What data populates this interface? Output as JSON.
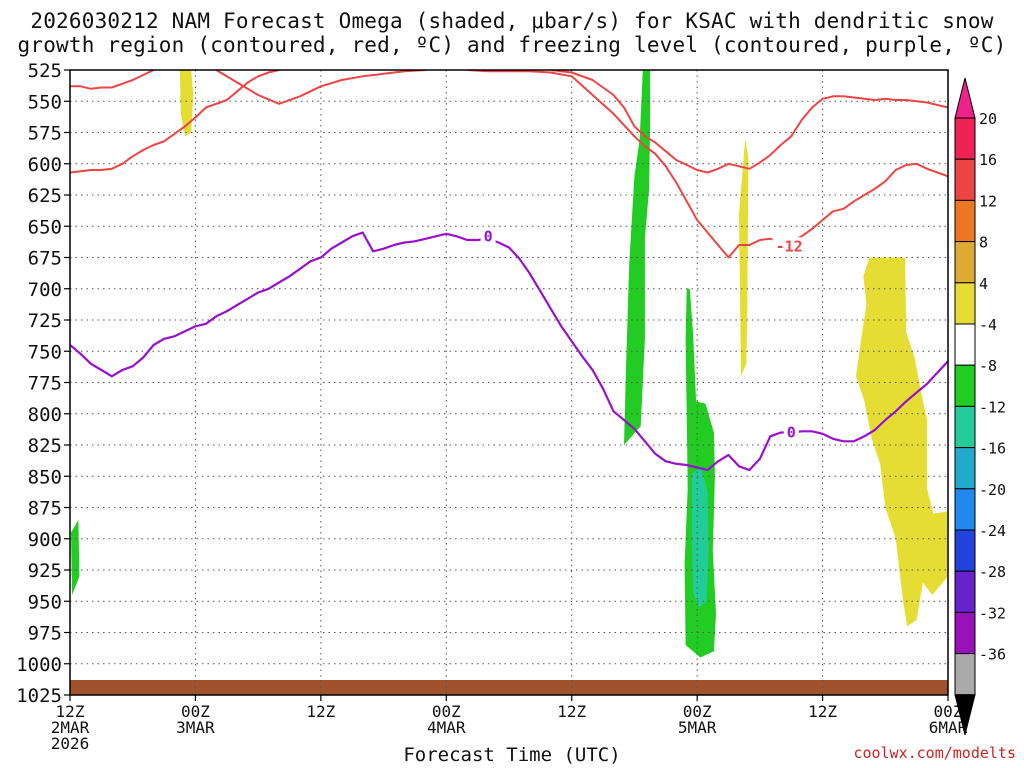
{
  "chart_data": {
    "type": "time-height",
    "title_line1": "2026030212 NAM Forecast Omega (shaded, μbar/s) for KSAC with dendritic snow",
    "title_line2": "growth region (contoured, red, ºC) and freezing level (contoured, purple, ºC)",
    "xlabel": "Forecast Time (UTC)",
    "credit": "coolwx.com/modelts",
    "x_range_hours": [
      0,
      84
    ],
    "y_range_hpa": [
      525,
      1025
    ],
    "x_ticks": [
      {
        "hour": 0,
        "line1": "12Z",
        "line2": "2MAR",
        "line3": "2026"
      },
      {
        "hour": 12,
        "line1": "00Z",
        "line2": "3MAR",
        "line3": ""
      },
      {
        "hour": 24,
        "line1": "12Z",
        "line2": "",
        "line3": ""
      },
      {
        "hour": 36,
        "line1": "00Z",
        "line2": "4MAR",
        "line3": ""
      },
      {
        "hour": 48,
        "line1": "12Z",
        "line2": "",
        "line3": ""
      },
      {
        "hour": 60,
        "line1": "00Z",
        "line2": "5MAR",
        "line3": ""
      },
      {
        "hour": 72,
        "line1": "12Z",
        "line2": "",
        "line3": ""
      },
      {
        "hour": 84,
        "line1": "00Z",
        "line2": "6MAR",
        "line3": ""
      }
    ],
    "y_ticks": [
      525,
      550,
      575,
      600,
      625,
      650,
      675,
      700,
      725,
      750,
      775,
      800,
      825,
      850,
      875,
      900,
      925,
      950,
      975,
      1000,
      1025
    ],
    "colorbar": {
      "levels": [
        20,
        16,
        12,
        8,
        4,
        -4,
        -8,
        -12,
        -16,
        -20,
        -24,
        -28,
        -32,
        -36
      ],
      "colors": [
        "#ee2255",
        "#ee4444",
        "#ee7722",
        "#ddaa33",
        "#e5dd33",
        "#ffffff",
        "#22cc22",
        "#22cc99",
        "#22aacc",
        "#2288ee",
        "#2244dd",
        "#6622cc",
        "#9911bb",
        "#aaaaaa",
        "#000000"
      ],
      "top_arrow_color": "#ee2288",
      "bottom_arrow_color": "#000000"
    },
    "colors": {
      "dendritic_contour": "#ee4444",
      "freezing_contour": "#9911cc",
      "ground": "#a0522d",
      "omega_pos_4": "#e5dd33",
      "omega_neg_4": "#22cc22",
      "omega_neg_8": "#22cc99"
    },
    "contour_labels": [
      {
        "text": "0",
        "hour": 40.0,
        "hpa": 658,
        "color_key": "freezing_contour"
      },
      {
        "text": "-12",
        "hour": 68.8,
        "hpa": 666,
        "color_key": "dendritic_contour"
      },
      {
        "text": "0",
        "hour": 69.0,
        "hpa": 815,
        "color_key": "freezing_contour"
      }
    ],
    "freezing_level_0C": [
      [
        0,
        745
      ],
      [
        1,
        752
      ],
      [
        2,
        760
      ],
      [
        3,
        765
      ],
      [
        4,
        770
      ],
      [
        5,
        765
      ],
      [
        6,
        762
      ],
      [
        7,
        755
      ],
      [
        8,
        745
      ],
      [
        9,
        740
      ],
      [
        10,
        738
      ],
      [
        11,
        734
      ],
      [
        12,
        730
      ],
      [
        13,
        728
      ],
      [
        14,
        722
      ],
      [
        15,
        718
      ],
      [
        16,
        713
      ],
      [
        17,
        708
      ],
      [
        18,
        703
      ],
      [
        19,
        700
      ],
      [
        20,
        695
      ],
      [
        21,
        690
      ],
      [
        22,
        684
      ],
      [
        23,
        678
      ],
      [
        24,
        675
      ],
      [
        25,
        668
      ],
      [
        26,
        663
      ],
      [
        27,
        658
      ],
      [
        28,
        655
      ],
      [
        29,
        670
      ],
      [
        30,
        668
      ],
      [
        31,
        665
      ],
      [
        32,
        663
      ],
      [
        33,
        662
      ],
      [
        34,
        660
      ],
      [
        35,
        658
      ],
      [
        36,
        656
      ],
      [
        37,
        658
      ],
      [
        38,
        661
      ],
      [
        39,
        661
      ],
      [
        40,
        660
      ],
      [
        41,
        663
      ],
      [
        42,
        667
      ],
      [
        43,
        676
      ],
      [
        44,
        688
      ],
      [
        45,
        702
      ],
      [
        46,
        716
      ],
      [
        47,
        730
      ],
      [
        48,
        742
      ],
      [
        49,
        754
      ],
      [
        50,
        765
      ],
      [
        51,
        780
      ],
      [
        52,
        798
      ],
      [
        53,
        805
      ],
      [
        54,
        812
      ],
      [
        55,
        822
      ],
      [
        56,
        832
      ],
      [
        57,
        838
      ],
      [
        58,
        840
      ],
      [
        59,
        841
      ],
      [
        60,
        843
      ],
      [
        61,
        845
      ],
      [
        62,
        838
      ],
      [
        63,
        833
      ],
      [
        64,
        842
      ],
      [
        65,
        845
      ],
      [
        66,
        836
      ],
      [
        67,
        818
      ],
      [
        68,
        815
      ],
      [
        69,
        815
      ],
      [
        70,
        814
      ],
      [
        71,
        814
      ],
      [
        72,
        816
      ],
      [
        73,
        820
      ],
      [
        74,
        822
      ],
      [
        75,
        822
      ],
      [
        76,
        818
      ],
      [
        77,
        813
      ],
      [
        78,
        805
      ],
      [
        79,
        798
      ],
      [
        80,
        790
      ],
      [
        81,
        783
      ],
      [
        82,
        776
      ],
      [
        83,
        767
      ],
      [
        84,
        758
      ]
    ],
    "dendritic_upper": [
      [
        0,
        538
      ],
      [
        1,
        538
      ],
      [
        2,
        540
      ],
      [
        3,
        539
      ],
      [
        4,
        539
      ],
      [
        5,
        536
      ],
      [
        6,
        533
      ],
      [
        7,
        529
      ],
      [
        8,
        525
      ]
    ],
    "dendritic_upper_b": [
      [
        14,
        525
      ],
      [
        16,
        535
      ],
      [
        18,
        545
      ],
      [
        20,
        552
      ],
      [
        22,
        546
      ],
      [
        24,
        538
      ],
      [
        26,
        533
      ],
      [
        28,
        530
      ],
      [
        30,
        528
      ],
      [
        32,
        526
      ],
      [
        34,
        525
      ]
    ],
    "dendritic_upper_c": [
      [
        38,
        525
      ],
      [
        40,
        526
      ],
      [
        42,
        526
      ],
      [
        44,
        526
      ],
      [
        46,
        527
      ],
      [
        48,
        530
      ],
      [
        50,
        545
      ],
      [
        52,
        560
      ],
      [
        54,
        578
      ],
      [
        55,
        586
      ],
      [
        56,
        592
      ],
      [
        57,
        602
      ],
      [
        58,
        615
      ],
      [
        59,
        630
      ],
      [
        60,
        645
      ],
      [
        61,
        655
      ],
      [
        62,
        665
      ],
      [
        63,
        675
      ],
      [
        64,
        665
      ],
      [
        65,
        665
      ],
      [
        66,
        661
      ],
      [
        67,
        660
      ],
      [
        68,
        662
      ]
    ],
    "dendritic_lower": [
      [
        0,
        607
      ],
      [
        1,
        606
      ],
      [
        2,
        605
      ],
      [
        3,
        605
      ],
      [
        4,
        604
      ],
      [
        5,
        600
      ],
      [
        6,
        594
      ],
      [
        7,
        589
      ],
      [
        8,
        585
      ],
      [
        9,
        582
      ],
      [
        10,
        576
      ],
      [
        11,
        570
      ],
      [
        12,
        563
      ],
      [
        13,
        555
      ],
      [
        14,
        552
      ],
      [
        15,
        549
      ],
      [
        16,
        542
      ],
      [
        17,
        535
      ],
      [
        18,
        530
      ],
      [
        19,
        527
      ],
      [
        20,
        525
      ]
    ],
    "dendritic_right_upper": [
      [
        46,
        525
      ],
      [
        48,
        527
      ],
      [
        50,
        533
      ],
      [
        52,
        545
      ],
      [
        53,
        555
      ],
      [
        54,
        570
      ],
      [
        55,
        578
      ],
      [
        56,
        583
      ],
      [
        57,
        590
      ],
      [
        58,
        597
      ],
      [
        59,
        601
      ],
      [
        60,
        605
      ],
      [
        61,
        607
      ],
      [
        62,
        604
      ],
      [
        63,
        600
      ],
      [
        64,
        602
      ],
      [
        65,
        604
      ],
      [
        66,
        599
      ],
      [
        67,
        593
      ],
      [
        68,
        585
      ],
      [
        69,
        578
      ],
      [
        70,
        565
      ],
      [
        71,
        555
      ],
      [
        72,
        548
      ],
      [
        73,
        546
      ],
      [
        74,
        546
      ],
      [
        75,
        547
      ],
      [
        76,
        548
      ],
      [
        77,
        549
      ],
      [
        78,
        548
      ],
      [
        79,
        549
      ],
      [
        80,
        549
      ],
      [
        81,
        550
      ],
      [
        82,
        551
      ],
      [
        83,
        553
      ],
      [
        84,
        555
      ]
    ],
    "dendritic_right_lower": [
      [
        68,
        665
      ],
      [
        69,
        662
      ],
      [
        70,
        658
      ],
      [
        71,
        652
      ],
      [
        72,
        645
      ],
      [
        73,
        638
      ],
      [
        74,
        636
      ],
      [
        75,
        630
      ],
      [
        76,
        625
      ],
      [
        77,
        620
      ],
      [
        78,
        614
      ],
      [
        79,
        605
      ],
      [
        80,
        601
      ],
      [
        81,
        600
      ],
      [
        82,
        604
      ],
      [
        83,
        607
      ],
      [
        84,
        610
      ]
    ],
    "omega_regions": [
      {
        "name": "yellow-top-left",
        "level": "positive-4",
        "points": [
          [
            10.5,
            525
          ],
          [
            11.6,
            525
          ],
          [
            11.8,
            545
          ],
          [
            11.6,
            575
          ],
          [
            11.0,
            578
          ],
          [
            10.6,
            560
          ]
        ]
      },
      {
        "name": "green-left-edge",
        "level": "negative-4",
        "points": [
          [
            0.1,
            895
          ],
          [
            0.8,
            885
          ],
          [
            0.9,
            930
          ],
          [
            0.2,
            945
          ]
        ]
      },
      {
        "name": "green-column-main",
        "level": "negative-4",
        "points": [
          [
            53.0,
            825
          ],
          [
            53.2,
            760
          ],
          [
            53.5,
            680
          ],
          [
            54.0,
            610
          ],
          [
            54.5,
            580
          ],
          [
            54.8,
            525
          ],
          [
            55.5,
            525
          ],
          [
            55.5,
            570
          ],
          [
            55.4,
            620
          ],
          [
            55.0,
            660
          ],
          [
            55.0,
            740
          ],
          [
            54.6,
            810
          ]
        ]
      },
      {
        "name": "green-column-lower",
        "level": "negative-4",
        "points": [
          [
            59.0,
            700
          ],
          [
            59.3,
            700
          ],
          [
            59.6,
            735
          ],
          [
            59.9,
            790
          ],
          [
            60.8,
            792
          ],
          [
            61.6,
            815
          ],
          [
            61.7,
            850
          ],
          [
            61.5,
            910
          ],
          [
            61.8,
            960
          ],
          [
            61.6,
            990
          ],
          [
            60.3,
            995
          ],
          [
            58.9,
            985
          ],
          [
            58.8,
            920
          ],
          [
            59.1,
            860
          ],
          [
            59.0,
            800
          ],
          [
            58.9,
            740
          ]
        ]
      },
      {
        "name": "cyan-core",
        "level": "negative-8",
        "points": [
          [
            59.5,
            848
          ],
          [
            60.4,
            843
          ],
          [
            61.0,
            862
          ],
          [
            61.1,
            910
          ],
          [
            60.9,
            950
          ],
          [
            60.2,
            955
          ],
          [
            59.6,
            943
          ],
          [
            59.5,
            900
          ]
        ]
      },
      {
        "name": "yellow-narrow-mid",
        "level": "positive-4",
        "points": [
          [
            64.0,
            640
          ],
          [
            64.6,
            580
          ],
          [
            64.9,
            595
          ],
          [
            64.8,
            720
          ],
          [
            64.7,
            760
          ],
          [
            64.2,
            770
          ]
        ]
      },
      {
        "name": "yellow-right-block",
        "level": "positive-4",
        "points": [
          [
            76.5,
            675
          ],
          [
            79.9,
            675
          ],
          [
            80.0,
            735
          ],
          [
            80.8,
            755
          ],
          [
            81.6,
            790
          ],
          [
            82.0,
            805
          ],
          [
            82.0,
            860
          ],
          [
            82.6,
            880
          ],
          [
            84.0,
            878
          ],
          [
            84.0,
            930
          ],
          [
            82.5,
            945
          ],
          [
            81.6,
            935
          ],
          [
            81.0,
            965
          ],
          [
            80.1,
            970
          ],
          [
            79.7,
            950
          ],
          [
            79.0,
            900
          ],
          [
            78.0,
            875
          ],
          [
            77.5,
            840
          ],
          [
            76.7,
            820
          ],
          [
            76.0,
            790
          ],
          [
            75.2,
            770
          ],
          [
            75.7,
            740
          ],
          [
            76.2,
            712
          ],
          [
            75.9,
            690
          ]
        ]
      }
    ],
    "ground_top_hpa": 1013
  }
}
